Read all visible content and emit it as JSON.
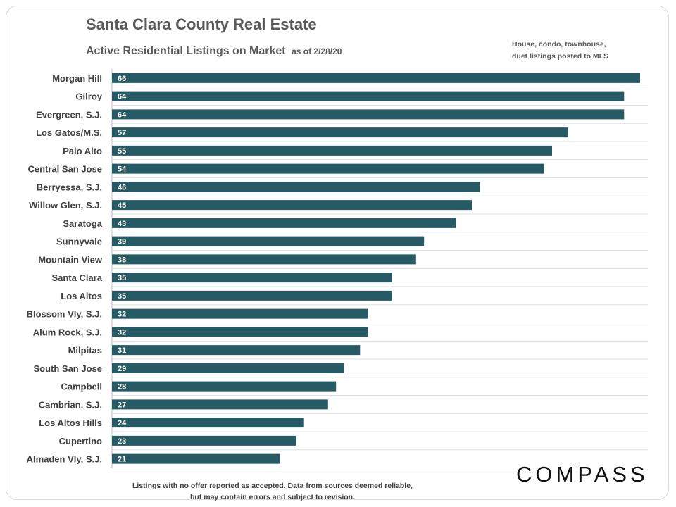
{
  "title": "Santa Clara County Real Estate",
  "subtitle": "Active Residential Listings on Market",
  "as_of": "as of 2/28/20",
  "note_lines": [
    "House, condo, townhouse,",
    "duet listings posted to MLS"
  ],
  "footer_lines": [
    "Listings with no offer reported as accepted. Data from sources deemed reliable,",
    "but may contain errors and subject to revision."
  ],
  "logo": "COMPASS",
  "colors": {
    "bar": "#265a64",
    "grid": "#d9e2e4",
    "text": "#404040"
  },
  "chart_data": {
    "type": "bar",
    "orientation": "horizontal",
    "title": "Active Residential Listings on Market",
    "xlabel": "",
    "ylabel": "",
    "xlim": [
      0,
      66
    ],
    "grid": true,
    "categories": [
      "Morgan Hill",
      "Gilroy",
      "Evergreen, S.J.",
      "Los Gatos/M.S.",
      "Palo Alto",
      "Central San Jose",
      "Berryessa, S.J.",
      "Willow Glen, S.J.",
      "Saratoga",
      "Sunnyvale",
      "Mountain View",
      "Santa Clara",
      "Los Altos",
      "Blossom Vly, S.J.",
      "Alum Rock, S.J.",
      "Milpitas",
      "South San Jose",
      "Campbell",
      "Cambrian, S.J.",
      "Los Altos Hills",
      "Cupertino",
      "Almaden Vly, S.J."
    ],
    "values": [
      66,
      64,
      64,
      57,
      55,
      54,
      46,
      45,
      43,
      39,
      38,
      35,
      35,
      32,
      32,
      31,
      29,
      28,
      27,
      24,
      23,
      21
    ]
  }
}
